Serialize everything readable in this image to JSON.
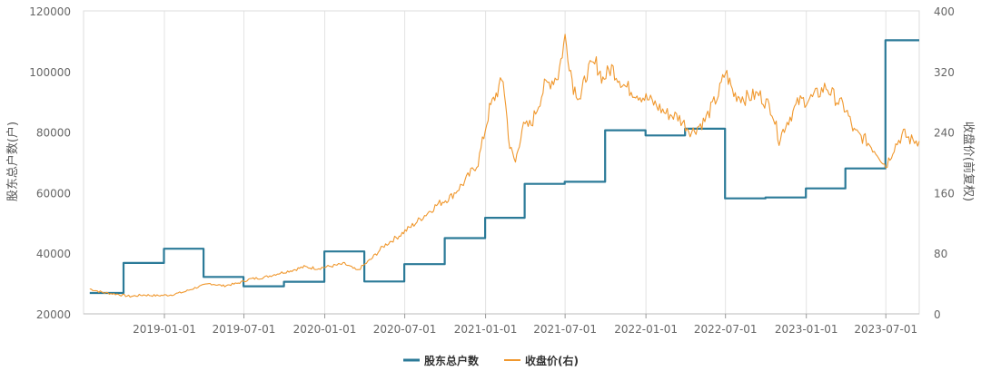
{
  "chart_data": {
    "type": "line",
    "title": "",
    "x_type": "date",
    "x_range": [
      "2018-07-01",
      "2023-09-15"
    ],
    "x_ticks": [
      "2019-01-01",
      "2019-07-01",
      "2020-01-01",
      "2020-07-01",
      "2021-01-01",
      "2021-07-01",
      "2022-01-01",
      "2022-07-01",
      "2023-01-01",
      "2023-07-01"
    ],
    "grid": {
      "vertical": true,
      "horizontal": false
    },
    "legend_position": "bottom",
    "y_left": {
      "label": "股东总户数(户)",
      "range": [
        20000,
        120000
      ],
      "ticks": [
        "20000",
        "40000",
        "60000",
        "80000",
        "100000",
        "120000"
      ]
    },
    "y_right": {
      "label": "收盘价(前复权)",
      "range": [
        0,
        400
      ],
      "ticks": [
        "0",
        "80",
        "160",
        "240",
        "320",
        "400"
      ]
    },
    "series": [
      {
        "name": "股东总户数",
        "axis": "left",
        "color": "#2b7a98",
        "style": "step",
        "points": [
          [
            "2018-07-15",
            26900
          ],
          [
            "2018-09-30",
            36800
          ],
          [
            "2018-12-31",
            41500
          ],
          [
            "2019-03-31",
            32200
          ],
          [
            "2019-06-30",
            29100
          ],
          [
            "2019-09-30",
            30600
          ],
          [
            "2019-12-31",
            40600
          ],
          [
            "2020-03-31",
            30700
          ],
          [
            "2020-06-30",
            36400
          ],
          [
            "2020-09-30",
            45000
          ],
          [
            "2020-12-31",
            51700
          ],
          [
            "2021-03-31",
            62900
          ],
          [
            "2021-06-30",
            63600
          ],
          [
            "2021-09-30",
            80600
          ],
          [
            "2021-12-31",
            78900
          ],
          [
            "2022-03-31",
            81100
          ],
          [
            "2022-06-30",
            58100
          ],
          [
            "2022-09-30",
            58400
          ],
          [
            "2022-12-31",
            61400
          ],
          [
            "2023-03-31",
            68000
          ],
          [
            "2023-06-30",
            110300
          ],
          [
            "2023-09-15",
            110300
          ]
        ]
      },
      {
        "name": "收盘价(右)",
        "axis": "right",
        "color": "#f0982e",
        "style": "line",
        "points": [
          [
            "2018-07-15",
            33
          ],
          [
            "2018-08-15",
            28
          ],
          [
            "2018-09-15",
            26
          ],
          [
            "2018-10-15",
            23
          ],
          [
            "2018-11-15",
            25
          ],
          [
            "2018-12-15",
            24
          ],
          [
            "2019-01-15",
            25
          ],
          [
            "2019-02-15",
            29
          ],
          [
            "2019-03-15",
            35
          ],
          [
            "2019-04-15",
            40
          ],
          [
            "2019-05-15",
            37
          ],
          [
            "2019-06-15",
            40
          ],
          [
            "2019-07-15",
            46
          ],
          [
            "2019-08-15",
            48
          ],
          [
            "2019-09-15",
            53
          ],
          [
            "2019-10-15",
            57
          ],
          [
            "2019-11-15",
            62
          ],
          [
            "2019-12-15",
            60
          ],
          [
            "2020-01-15",
            63
          ],
          [
            "2020-02-15",
            66
          ],
          [
            "2020-03-15",
            57
          ],
          [
            "2020-04-15",
            72
          ],
          [
            "2020-05-15",
            90
          ],
          [
            "2020-06-15",
            102
          ],
          [
            "2020-07-15",
            115
          ],
          [
            "2020-08-15",
            130
          ],
          [
            "2020-09-15",
            145
          ],
          [
            "2020-10-15",
            155
          ],
          [
            "2020-11-15",
            175
          ],
          [
            "2020-12-15",
            200
          ],
          [
            "2021-01-10",
            270
          ],
          [
            "2021-01-25",
            290
          ],
          [
            "2021-02-10",
            310
          ],
          [
            "2021-02-25",
            220
          ],
          [
            "2021-03-10",
            200
          ],
          [
            "2021-03-25",
            245
          ],
          [
            "2021-04-15",
            250
          ],
          [
            "2021-05-15",
            300
          ],
          [
            "2021-06-15",
            315
          ],
          [
            "2021-07-01",
            365
          ],
          [
            "2021-07-20",
            300
          ],
          [
            "2021-08-05",
            285
          ],
          [
            "2021-08-20",
            320
          ],
          [
            "2021-09-10",
            330
          ],
          [
            "2021-09-25",
            310
          ],
          [
            "2021-10-15",
            325
          ],
          [
            "2021-11-15",
            300
          ],
          [
            "2021-12-15",
            290
          ],
          [
            "2022-01-15",
            280
          ],
          [
            "2022-02-15",
            265
          ],
          [
            "2022-03-15",
            260
          ],
          [
            "2022-04-15",
            240
          ],
          [
            "2022-05-15",
            255
          ],
          [
            "2022-06-15",
            290
          ],
          [
            "2022-07-01",
            320
          ],
          [
            "2022-07-20",
            290
          ],
          [
            "2022-08-15",
            285
          ],
          [
            "2022-09-15",
            290
          ],
          [
            "2022-10-15",
            270
          ],
          [
            "2022-10-31",
            230
          ],
          [
            "2022-11-15",
            250
          ],
          [
            "2022-12-15",
            280
          ],
          [
            "2023-01-15",
            285
          ],
          [
            "2023-02-15",
            300
          ],
          [
            "2023-03-15",
            280
          ],
          [
            "2023-04-01",
            270
          ],
          [
            "2023-04-20",
            240
          ],
          [
            "2023-05-15",
            230
          ],
          [
            "2023-06-15",
            210
          ],
          [
            "2023-07-01",
            195
          ],
          [
            "2023-07-20",
            220
          ],
          [
            "2023-08-10",
            238
          ],
          [
            "2023-08-25",
            230
          ],
          [
            "2023-09-15",
            228
          ]
        ]
      }
    ]
  }
}
